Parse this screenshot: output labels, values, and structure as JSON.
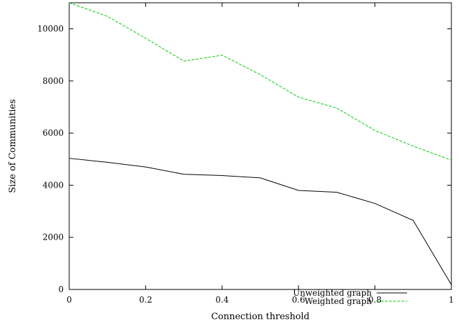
{
  "chart_data": {
    "type": "line",
    "xlabel": "Connection threshold",
    "ylabel": "Size of Communities",
    "xlim": [
      0,
      1
    ],
    "ylim": [
      0,
      11000
    ],
    "x_ticks": [
      0,
      0.2,
      0.4,
      0.6,
      0.8,
      1
    ],
    "x_tick_labels": [
      "0",
      "0.2",
      "0.4",
      "0.6",
      "0.8",
      "1"
    ],
    "y_ticks": [
      0,
      2000,
      4000,
      6000,
      8000,
      10000
    ],
    "y_tick_labels": [
      "0",
      "2000",
      "4000",
      "6000",
      "8000",
      "10000"
    ],
    "grid": false,
    "legend_position": "bottom-right",
    "x": [
      0,
      0.1,
      0.2,
      0.3,
      0.4,
      0.5,
      0.6,
      0.7,
      0.8,
      0.9,
      1.0
    ],
    "series": [
      {
        "name": "Unweighted graph",
        "color": "#000000",
        "dash": "solid",
        "values": [
          5030,
          4880,
          4700,
          4420,
          4370,
          4280,
          3800,
          3730,
          3300,
          2650,
          180
        ]
      },
      {
        "name": "Weighted graph",
        "color": "#00cc00",
        "dash": "dashed",
        "values": [
          11000,
          10480,
          9640,
          8760,
          8990,
          8240,
          7380,
          6960,
          6100,
          5500,
          4960
        ]
      }
    ]
  }
}
